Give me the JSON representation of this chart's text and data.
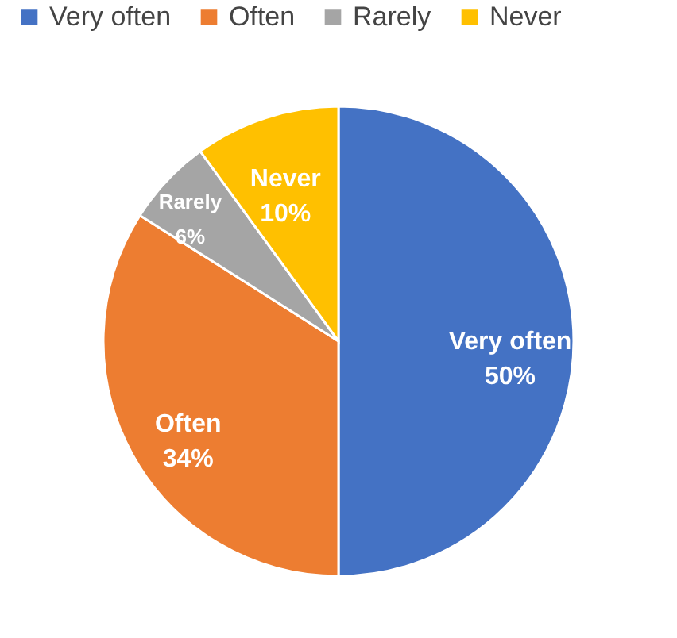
{
  "chart_data": {
    "type": "pie",
    "categories": [
      "Very often",
      "Often",
      "Rarely",
      "Never"
    ],
    "values": [
      50,
      34,
      6,
      10
    ],
    "colors": [
      "#4472c4",
      "#ed7d31",
      "#a5a5a5",
      "#ffc000"
    ],
    "value_labels": [
      "50%",
      "34%",
      "6%",
      "10%"
    ],
    "legend": "top"
  }
}
